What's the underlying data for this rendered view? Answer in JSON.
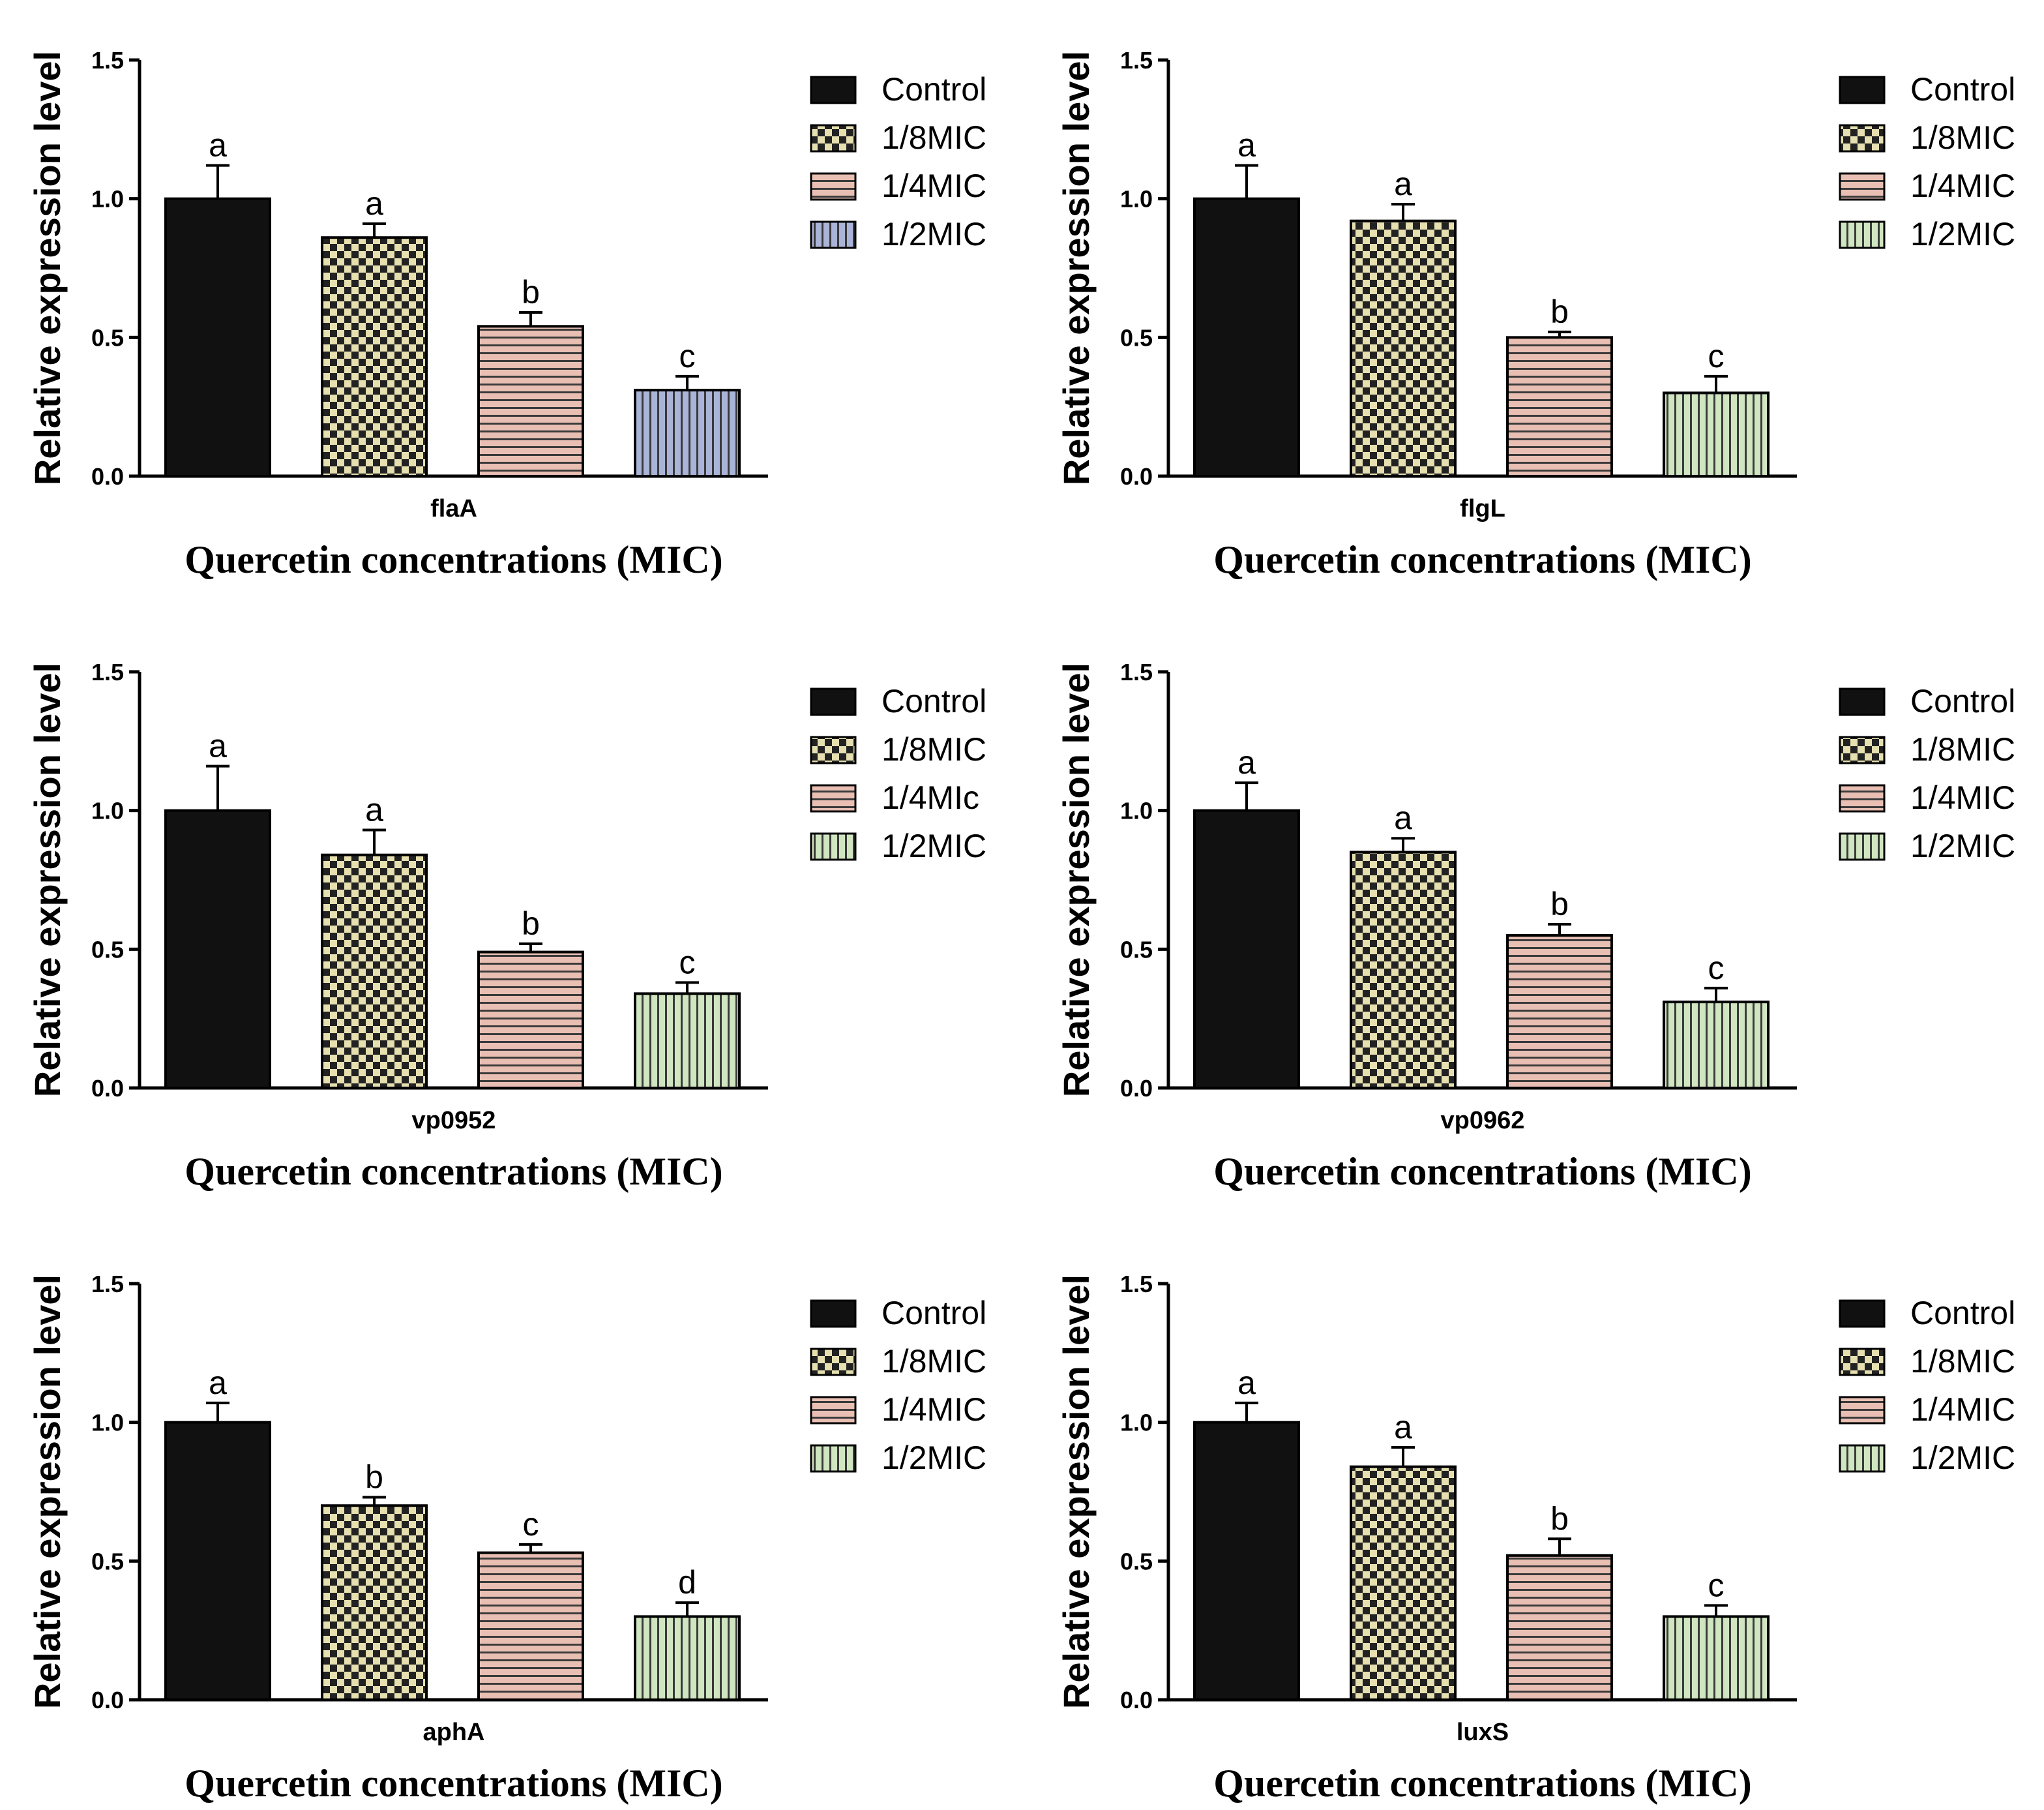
{
  "chart_data": [
    {
      "type": "bar",
      "title": "",
      "gene": "flaA",
      "categories": [
        "Control",
        "1/8MIC",
        "1/4MIC",
        "1/2MIC"
      ],
      "legend": [
        "Control",
        "1/8MIC",
        "1/4MIC",
        "1/2MIC"
      ],
      "values": [
        1.0,
        0.86,
        0.54,
        0.31
      ],
      "errors": [
        0.12,
        0.05,
        0.05,
        0.05
      ],
      "significance": [
        "a",
        "a",
        "b",
        "c"
      ],
      "fills": [
        "#111111",
        "checker-#e6dfb0",
        "hstripe-#e9bfb4",
        "vstripe-#aab4d8"
      ],
      "ylabel": "Relative expression level",
      "xlabel": "Quercetin concentrations (MIC)",
      "ylim": [
        0,
        1.5
      ],
      "yticks": [
        "0.0",
        "0.5",
        "1.0",
        "1.5"
      ]
    },
    {
      "type": "bar",
      "title": "",
      "gene": "flgL",
      "categories": [
        "Control",
        "1/8MIC",
        "1/4MIC",
        "1/2MIC"
      ],
      "legend": [
        "Control",
        "1/8MIC",
        "1/4MIC",
        "1/2MIC"
      ],
      "values": [
        1.0,
        0.92,
        0.5,
        0.3
      ],
      "errors": [
        0.12,
        0.06,
        0.02,
        0.06
      ],
      "significance": [
        "a",
        "a",
        "b",
        "c"
      ],
      "fills": [
        "#111111",
        "checker-#e6dfb0",
        "hstripe-#e9bfb4",
        "vstripe-#cfe6c0"
      ],
      "ylabel": "Relative expression level",
      "xlabel": "Quercetin concentrations (MIC)",
      "ylim": [
        0,
        1.5
      ],
      "yticks": [
        "0.0",
        "0.5",
        "1.0",
        "1.5"
      ]
    },
    {
      "type": "bar",
      "title": "",
      "gene": "vp0952",
      "categories": [
        "Control",
        "1/8MIC",
        "1/4MIc",
        "1/2MIC"
      ],
      "legend": [
        "Control",
        "1/8MIC",
        "1/4MIc",
        "1/2MIC"
      ],
      "values": [
        1.0,
        0.84,
        0.49,
        0.34
      ],
      "errors": [
        0.16,
        0.09,
        0.03,
        0.04
      ],
      "significance": [
        "a",
        "a",
        "b",
        "c"
      ],
      "fills": [
        "#111111",
        "checker-#e6dfb0",
        "hstripe-#e9bfb4",
        "vstripe-#cfe6c0"
      ],
      "ylabel": "Relative expression level",
      "xlabel": "Quercetin concentrations (MIC)",
      "ylim": [
        0,
        1.5
      ],
      "yticks": [
        "0.0",
        "0.5",
        "1.0",
        "1.5"
      ]
    },
    {
      "type": "bar",
      "title": "",
      "gene": "vp0962",
      "categories": [
        "Control",
        "1/8MIC",
        "1/4MIC",
        "1/2MIC"
      ],
      "legend": [
        "Control",
        "1/8MIC",
        "1/4MIC",
        "1/2MIC"
      ],
      "values": [
        1.0,
        0.85,
        0.55,
        0.31
      ],
      "errors": [
        0.1,
        0.05,
        0.04,
        0.05
      ],
      "significance": [
        "a",
        "a",
        "b",
        "c"
      ],
      "fills": [
        "#111111",
        "checker-#e6dfb0",
        "hstripe-#e9bfb4",
        "vstripe-#cfe6c0"
      ],
      "ylabel": "Relative expression level",
      "xlabel": "Quercetin concentrations (MIC)",
      "ylim": [
        0,
        1.5
      ],
      "yticks": [
        "0.0",
        "0.5",
        "1.0",
        "1.5"
      ]
    },
    {
      "type": "bar",
      "title": "",
      "gene": "aphA",
      "categories": [
        "Control",
        "1/8MIC",
        "1/4MIC",
        "1/2MIC"
      ],
      "legend": [
        "Control",
        "1/8MIC",
        "1/4MIC",
        "1/2MIC"
      ],
      "values": [
        1.0,
        0.7,
        0.53,
        0.3
      ],
      "errors": [
        0.07,
        0.03,
        0.03,
        0.05
      ],
      "significance": [
        "a",
        "b",
        "c",
        "d"
      ],
      "fills": [
        "#111111",
        "checker-#e6dfb0",
        "hstripe-#e9bfb4",
        "vstripe-#cfe6c0"
      ],
      "ylabel": "Relative expression level",
      "xlabel": "Quercetin concentrations (MIC)",
      "ylim": [
        0,
        1.5
      ],
      "yticks": [
        "0.0",
        "0.5",
        "1.0",
        "1.5"
      ]
    },
    {
      "type": "bar",
      "title": "",
      "gene": "luxS",
      "categories": [
        "Control",
        "1/8MIC",
        "1/4MIC",
        "1/2MIC"
      ],
      "legend": [
        "Control",
        "1/8MIC",
        "1/4MIC",
        "1/2MIC"
      ],
      "values": [
        1.0,
        0.84,
        0.52,
        0.3
      ],
      "errors": [
        0.07,
        0.07,
        0.06,
        0.04
      ],
      "significance": [
        "a",
        "a",
        "b",
        "c"
      ],
      "fills": [
        "#111111",
        "checker-#e6dfb0",
        "hstripe-#e9bfb4",
        "vstripe-#cfe6c0"
      ],
      "ylabel": "Relative expression level",
      "xlabel": "Quercetin concentrations (MIC)",
      "ylim": [
        0,
        1.5
      ],
      "yticks": [
        "0.0",
        "0.5",
        "1.0",
        "1.5"
      ]
    }
  ]
}
